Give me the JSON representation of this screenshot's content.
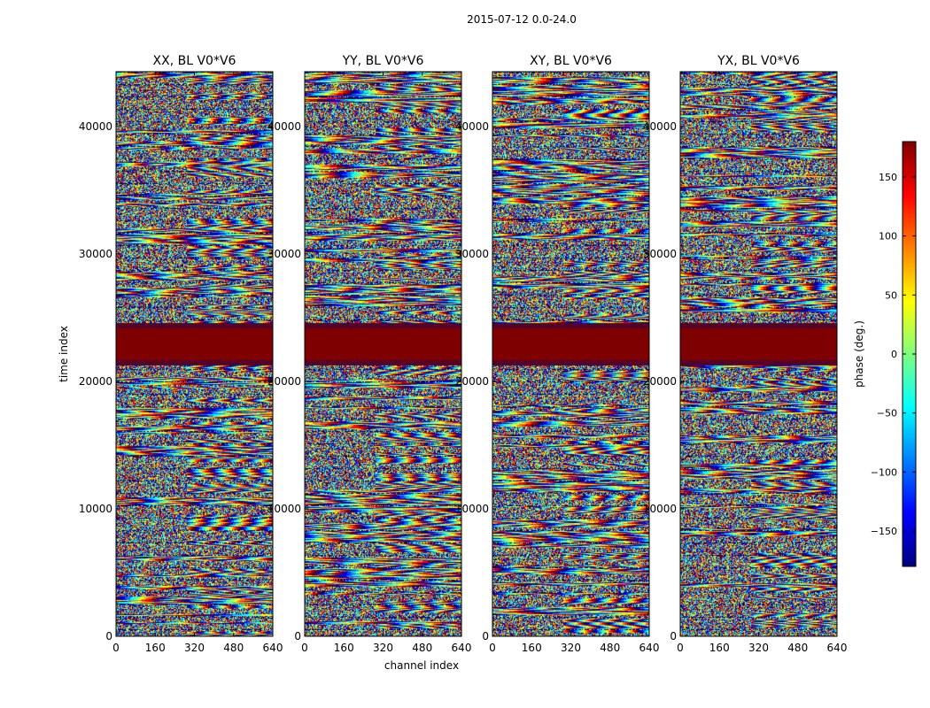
{
  "figure_title": "2015-07-12 0.0-24.0",
  "colormap": [
    "#00007f",
    "#0000ff",
    "#007fff",
    "#00ffff",
    "#7fff7f",
    "#ffff00",
    "#ff7f00",
    "#ff0000",
    "#7f0000"
  ],
  "chart_data": [
    {
      "type": "heatmap",
      "title": "XX, BL V0*V6",
      "xlabel": "",
      "ylabel": "time index",
      "xlim": [
        0,
        640
      ],
      "ylim": [
        0,
        44300
      ],
      "xticks": [
        "0",
        "160",
        "320",
        "480",
        "640"
      ],
      "yticks": [
        "0",
        "10000",
        "20000",
        "30000",
        "40000"
      ],
      "ytick_values": [
        0,
        10000,
        20000,
        30000,
        40000
      ],
      "value": "phase (deg.)",
      "value_range": [
        -180,
        180
      ],
      "saturated_band_y": [
        21700,
        24200
      ]
    },
    {
      "type": "heatmap",
      "title": "YY, BL V0*V6",
      "xlabel": "channel index",
      "ylabel": "",
      "xlim": [
        0,
        640
      ],
      "ylim": [
        0,
        44300
      ],
      "xticks": [
        "0",
        "160",
        "320",
        "480",
        "640"
      ],
      "yticks": [
        "0",
        "10000",
        "20000",
        "30000",
        "40000"
      ],
      "ytick_values": [
        0,
        10000,
        20000,
        30000,
        40000
      ],
      "value": "phase (deg.)",
      "value_range": [
        -180,
        180
      ],
      "saturated_band_y": [
        21700,
        24200
      ]
    },
    {
      "type": "heatmap",
      "title": "XY, BL V0*V6",
      "xlabel": "",
      "ylabel": "",
      "xlim": [
        0,
        640
      ],
      "ylim": [
        0,
        44300
      ],
      "xticks": [
        "0",
        "160",
        "320",
        "480",
        "640"
      ],
      "yticks": [
        "0",
        "10000",
        "20000",
        "30000",
        "40000"
      ],
      "ytick_values": [
        0,
        10000,
        20000,
        30000,
        40000
      ],
      "value": "phase (deg.)",
      "value_range": [
        -180,
        180
      ],
      "saturated_band_y": [
        21700,
        24200
      ]
    },
    {
      "type": "heatmap",
      "title": "YX, BL V0*V6",
      "xlabel": "",
      "ylabel": "",
      "xlim": [
        0,
        640
      ],
      "ylim": [
        0,
        44300
      ],
      "xticks": [
        "0",
        "160",
        "320",
        "480",
        "640"
      ],
      "yticks": [
        "0",
        "10000",
        "20000",
        "30000",
        "40000"
      ],
      "ytick_values": [
        0,
        10000,
        20000,
        30000,
        40000
      ],
      "value": "phase (deg.)",
      "value_range": [
        -180,
        180
      ],
      "saturated_band_y": [
        21700,
        24200
      ]
    }
  ],
  "colorbar": {
    "label": "phase (deg.)",
    "range": [
      -180,
      180
    ],
    "ticks": [
      "150",
      "100",
      "50",
      "0",
      "−50",
      "−100",
      "−150"
    ],
    "tick_values": [
      150,
      100,
      50,
      0,
      -50,
      -100,
      -150
    ]
  }
}
